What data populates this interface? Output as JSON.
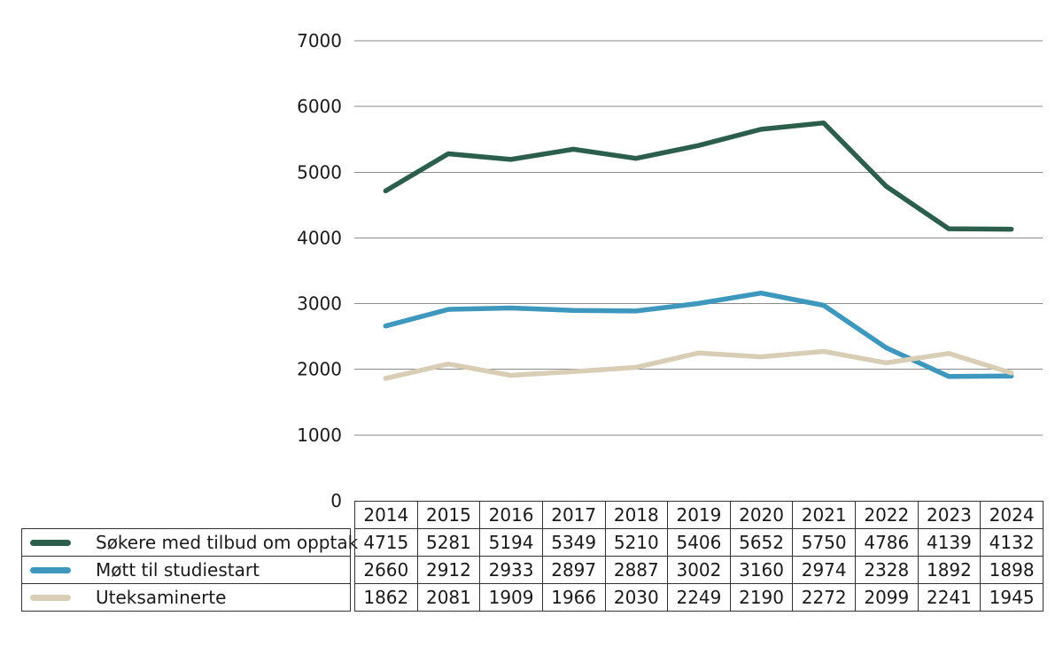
{
  "chart_data": {
    "type": "line",
    "title": "",
    "xlabel": "",
    "ylabel": "",
    "categories": [
      "2014",
      "2015",
      "2016",
      "2017",
      "2018",
      "2019",
      "2020",
      "2021",
      "2022",
      "2023",
      "2024"
    ],
    "series": [
      {
        "name": "Søkere med tilbud om opptak",
        "color": "#2b5f4b",
        "values": [
          4715,
          5281,
          5194,
          5349,
          5210,
          5406,
          5652,
          5750,
          4786,
          4139,
          4132
        ]
      },
      {
        "name": "Møtt til studiestart",
        "color": "#3e98bd",
        "values": [
          2660,
          2912,
          2933,
          2897,
          2887,
          3002,
          3160,
          2974,
          2328,
          1892,
          1898
        ]
      },
      {
        "name": "Uteksaminerte",
        "color": "#d8ceb6",
        "values": [
          1862,
          2081,
          1909,
          1966,
          2030,
          2249,
          2190,
          2272,
          2099,
          2241,
          1945
        ]
      }
    ],
    "ylim": [
      0,
      7000
    ],
    "ytick_step": 1000,
    "yticks": [
      0,
      1000,
      2000,
      3000,
      4000,
      5000,
      6000,
      7000
    ],
    "grid": "horizontal-only",
    "gridline_color": "#8a8a8a",
    "border_color": "#333333",
    "text_color": "#1a1a1a",
    "legend_position": "bottom-left-as-table-row-headers",
    "values_shown_in_table": true
  }
}
